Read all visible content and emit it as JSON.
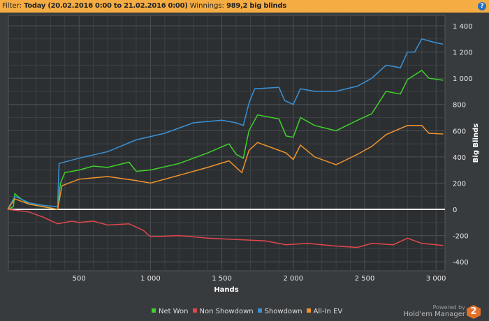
{
  "filter": {
    "label": "Filter:",
    "text": "Today (20.02.2016 0:00 to 21.02.2016 0:00)",
    "winnings_label": "Winnings:",
    "winnings": "989,2 big blinds"
  },
  "brand": {
    "powered": "Powered by",
    "name": "Hold'em Manager",
    "logo": "2"
  },
  "chart_data": {
    "type": "line",
    "xlabel": "Hands",
    "ylabel": "Big Blinds",
    "xlim": [
      0,
      3050
    ],
    "ylim": [
      -450,
      1500
    ],
    "xticks": [
      {
        "v": 500,
        "label": "500"
      },
      {
        "v": 1000,
        "label": "1 000"
      },
      {
        "v": 1500,
        "label": "1 500"
      },
      {
        "v": 2000,
        "label": "2 000"
      },
      {
        "v": 2500,
        "label": "2 500"
      },
      {
        "v": 3000,
        "label": "3 000"
      }
    ],
    "yticks": [
      {
        "v": 1400,
        "label": "1 400"
      },
      {
        "v": 1200,
        "label": "1 200"
      },
      {
        "v": 1000,
        "label": "1 000"
      },
      {
        "v": 800,
        "label": "800"
      },
      {
        "v": 600,
        "label": "600"
      },
      {
        "v": 400,
        "label": "400"
      },
      {
        "v": 200,
        "label": "200"
      },
      {
        "v": 0,
        "label": "0"
      },
      {
        "v": -200,
        "label": "-200"
      },
      {
        "v": -400,
        "label": "-400"
      }
    ],
    "grid": true,
    "legend": "bottom",
    "series": [
      {
        "name": "Net Won",
        "color": "#3fd12b",
        "points": [
          [
            0,
            0
          ],
          [
            40,
            20
          ],
          [
            50,
            120
          ],
          [
            80,
            90
          ],
          [
            150,
            40
          ],
          [
            250,
            20
          ],
          [
            350,
            0
          ],
          [
            370,
            200
          ],
          [
            400,
            280
          ],
          [
            500,
            300
          ],
          [
            600,
            330
          ],
          [
            700,
            320
          ],
          [
            850,
            360
          ],
          [
            900,
            290
          ],
          [
            1000,
            300
          ],
          [
            1200,
            350
          ],
          [
            1400,
            430
          ],
          [
            1550,
            500
          ],
          [
            1600,
            420
          ],
          [
            1650,
            390
          ],
          [
            1690,
            600
          ],
          [
            1750,
            720
          ],
          [
            1900,
            690
          ],
          [
            1950,
            560
          ],
          [
            2000,
            550
          ],
          [
            2050,
            700
          ],
          [
            2150,
            640
          ],
          [
            2300,
            600
          ],
          [
            2450,
            680
          ],
          [
            2550,
            730
          ],
          [
            2650,
            900
          ],
          [
            2750,
            880
          ],
          [
            2800,
            990
          ],
          [
            2900,
            1060
          ],
          [
            2950,
            1000
          ],
          [
            3050,
            985
          ]
        ]
      },
      {
        "name": "Non Showdown",
        "color": "#e0474c",
        "points": [
          [
            0,
            0
          ],
          [
            150,
            -20
          ],
          [
            250,
            -60
          ],
          [
            350,
            -110
          ],
          [
            450,
            -90
          ],
          [
            500,
            -100
          ],
          [
            600,
            -90
          ],
          [
            700,
            -120
          ],
          [
            850,
            -110
          ],
          [
            950,
            -160
          ],
          [
            1000,
            -210
          ],
          [
            1200,
            -200
          ],
          [
            1400,
            -220
          ],
          [
            1600,
            -230
          ],
          [
            1800,
            -240
          ],
          [
            1950,
            -270
          ],
          [
            2100,
            -260
          ],
          [
            2300,
            -280
          ],
          [
            2450,
            -290
          ],
          [
            2550,
            -260
          ],
          [
            2700,
            -270
          ],
          [
            2800,
            -220
          ],
          [
            2900,
            -260
          ],
          [
            3050,
            -275
          ]
        ]
      },
      {
        "name": "Showdown",
        "color": "#3a91d6",
        "points": [
          [
            0,
            0
          ],
          [
            50,
            100
          ],
          [
            150,
            50
          ],
          [
            250,
            30
          ],
          [
            350,
            20
          ],
          [
            360,
            350
          ],
          [
            500,
            390
          ],
          [
            700,
            440
          ],
          [
            900,
            530
          ],
          [
            1100,
            580
          ],
          [
            1300,
            660
          ],
          [
            1500,
            680
          ],
          [
            1600,
            660
          ],
          [
            1650,
            640
          ],
          [
            1690,
            810
          ],
          [
            1730,
            920
          ],
          [
            1900,
            930
          ],
          [
            1940,
            830
          ],
          [
            2000,
            800
          ],
          [
            2050,
            920
          ],
          [
            2150,
            900
          ],
          [
            2300,
            900
          ],
          [
            2450,
            940
          ],
          [
            2550,
            1000
          ],
          [
            2650,
            1100
          ],
          [
            2750,
            1080
          ],
          [
            2800,
            1200
          ],
          [
            2850,
            1200
          ],
          [
            2900,
            1300
          ],
          [
            3000,
            1270
          ],
          [
            3050,
            1260
          ]
        ]
      },
      {
        "name": "All-In EV",
        "color": "#f0922f",
        "points": [
          [
            0,
            0
          ],
          [
            50,
            80
          ],
          [
            150,
            40
          ],
          [
            250,
            20
          ],
          [
            350,
            0
          ],
          [
            380,
            180
          ],
          [
            500,
            230
          ],
          [
            700,
            250
          ],
          [
            900,
            220
          ],
          [
            1000,
            200
          ],
          [
            1200,
            260
          ],
          [
            1400,
            320
          ],
          [
            1550,
            370
          ],
          [
            1640,
            280
          ],
          [
            1690,
            450
          ],
          [
            1750,
            510
          ],
          [
            1950,
            430
          ],
          [
            2000,
            380
          ],
          [
            2050,
            490
          ],
          [
            2150,
            400
          ],
          [
            2300,
            340
          ],
          [
            2450,
            420
          ],
          [
            2550,
            480
          ],
          [
            2650,
            570
          ],
          [
            2800,
            640
          ],
          [
            2900,
            640
          ],
          [
            2950,
            580
          ],
          [
            3050,
            575
          ]
        ]
      }
    ]
  }
}
